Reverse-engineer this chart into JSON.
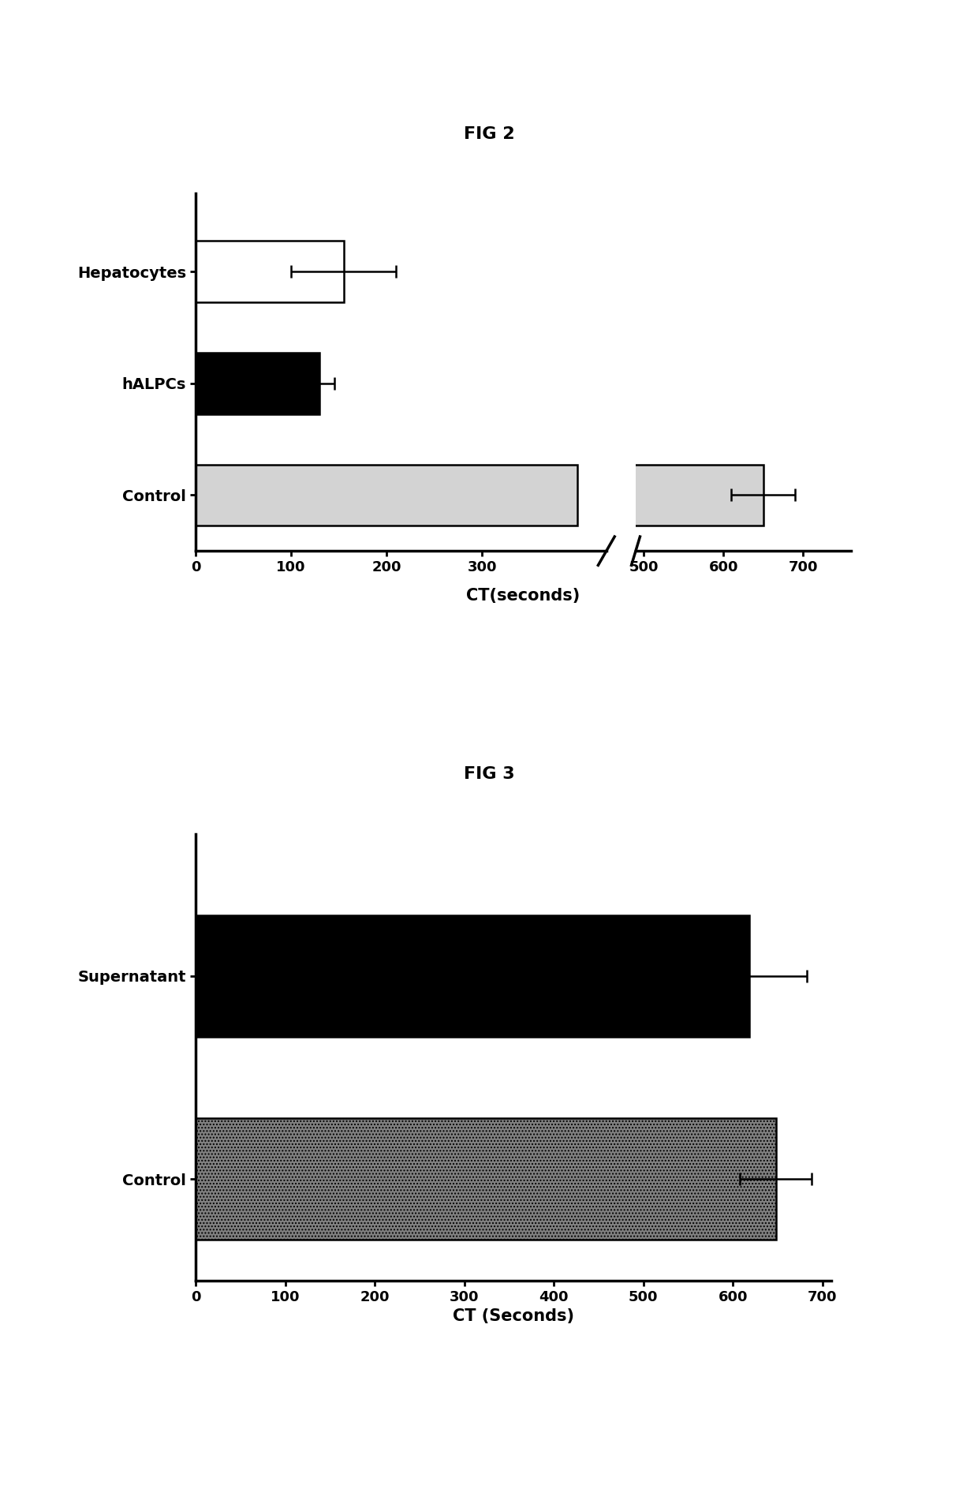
{
  "fig2_title": "FIG 2",
  "fig2_categories": [
    "Control",
    "hALPCs",
    "Hepatocytes"
  ],
  "fig2_values": [
    650,
    130,
    155
  ],
  "fig2_errors": [
    40,
    15,
    55
  ],
  "fig2_colors": [
    "lightgray",
    "black",
    "white"
  ],
  "fig2_xlabel": "CT(seconds)",
  "fig3_title": "FIG 3",
  "fig3_categories": [
    "Control",
    "Supernatant"
  ],
  "fig3_values": [
    648,
    618
  ],
  "fig3_errors": [
    40,
    65
  ],
  "fig3_xlabel": "CT (Seconds)",
  "fig3_xticks": [
    0,
    100,
    200,
    300,
    400,
    500,
    600,
    700
  ],
  "fig3_xlim": [
    0,
    710
  ],
  "background_color": "white",
  "title_fontsize": 16,
  "label_fontsize": 14,
  "tick_fontsize": 13
}
